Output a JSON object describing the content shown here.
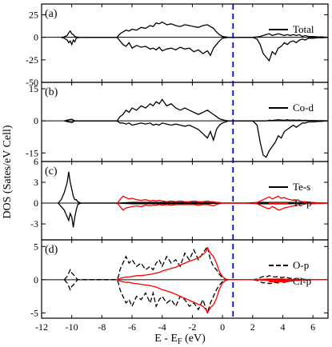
{
  "figure": {
    "ylabel": "DOS (Sates/eV Cell)",
    "xlabel_main": "E - E",
    "xlabel_sub": "F",
    "xlabel_unit": " (eV)"
  },
  "colors": {
    "black": "#000000",
    "red": "#ff0000",
    "fermi_line": "#0000ff"
  },
  "chart_data": [
    {
      "type": "line",
      "panel_label": "(a)",
      "xlim": [
        -12,
        7
      ],
      "ylim": [
        -50,
        37
      ],
      "yticks": [
        25,
        0,
        -25,
        -50
      ],
      "fermi_level_x": 0.7,
      "series": [
        {
          "name": "Total",
          "color": "#000000",
          "x": [
            -10.7,
            -10.5,
            -10.3,
            -10.2,
            -10.1,
            -10,
            -9.9,
            -9.8,
            -9.7,
            -9.5,
            -7,
            -6.9,
            -6.8,
            -6.6,
            -6.4,
            -6.2,
            -6,
            -5.7,
            -5.4,
            -5.1,
            -4.8,
            -4.6,
            -4.4,
            -4.2,
            -4,
            -3.7,
            -3.4,
            -3.1,
            -2.8,
            -2.5,
            -2.2,
            -1.9,
            -1.6,
            -1.3,
            -1,
            -0.8,
            -0.6,
            -0.4,
            -0.2,
            0,
            0.2,
            0.4,
            1.5,
            2,
            2.3,
            2.5,
            2.7,
            2.9,
            3.1,
            3.3,
            3.5,
            3.7,
            3.9,
            4.1,
            4.3,
            4.5,
            4.7,
            4.9,
            5.1,
            5.3,
            5.5,
            5.7,
            6,
            6.3,
            6.6,
            7
          ],
          "values_up": [
            0,
            0.5,
            2,
            5,
            7,
            4,
            3,
            1,
            0.5,
            0,
            0,
            2,
            4,
            6,
            8,
            7,
            9,
            8,
            11,
            10,
            13,
            12,
            16,
            15,
            17,
            14,
            15,
            13,
            12,
            14,
            13,
            12,
            11,
            13,
            14,
            12,
            10,
            6,
            3,
            1,
            0.5,
            0,
            0,
            0,
            0.5,
            1,
            2,
            3,
            4,
            2,
            3,
            4,
            3,
            2,
            3,
            2,
            3,
            2,
            3,
            1,
            2,
            1,
            1,
            0.5,
            0.5,
            0
          ],
          "values_down": [
            0,
            -1,
            -3,
            -6,
            -4,
            -8,
            -3,
            -5,
            -1,
            0,
            0,
            -2,
            -4,
            -8,
            -10,
            -6,
            -12,
            -9,
            -11,
            -10,
            -13,
            -12,
            -14,
            -11,
            -15,
            -13,
            -12,
            -14,
            -11,
            -13,
            -12,
            -16,
            -14,
            -18,
            -15,
            -20,
            -12,
            -8,
            -4,
            -1,
            -0.5,
            0,
            0,
            0,
            -2,
            -8,
            -18,
            -22,
            -26,
            -16,
            -19,
            -12,
            -10,
            -6,
            -8,
            -5,
            -4,
            -6,
            -3,
            -2,
            -3,
            -1,
            -1,
            -0.5,
            -0.5,
            0
          ]
        }
      ]
    },
    {
      "type": "line",
      "panel_label": "(b)",
      "xlim": [
        -12,
        7
      ],
      "ylim": [
        -19,
        18
      ],
      "yticks": [
        15,
        0,
        -15
      ],
      "fermi_level_x": 0.7,
      "series": [
        {
          "name": "Co-d",
          "color": "#000000",
          "x": [
            -10.5,
            -10.2,
            -10,
            -9.8,
            -7,
            -6.9,
            -6.8,
            -6.6,
            -6.4,
            -6.2,
            -6,
            -5.7,
            -5.4,
            -5.1,
            -4.8,
            -4.6,
            -4.4,
            -4.2,
            -4,
            -3.7,
            -3.4,
            -3.1,
            -2.8,
            -2.5,
            -2.2,
            -1.9,
            -1.6,
            -1.3,
            -1,
            -0.8,
            -0.6,
            -0.4,
            -0.2,
            0,
            0.2,
            0.4,
            1.5,
            2,
            2.3,
            2.5,
            2.7,
            2.9,
            3.1,
            3.3,
            3.5,
            3.7,
            3.9,
            4.1,
            4.3,
            4.5,
            4.7,
            4.9,
            5.1,
            5.3,
            5.5,
            5.7,
            6,
            6.3,
            6.6,
            7
          ],
          "values_up": [
            0,
            0.5,
            0.8,
            0,
            0,
            1,
            2,
            3,
            5,
            4,
            6,
            5,
            7,
            6,
            8,
            7,
            9,
            8,
            10,
            7,
            8,
            6,
            5,
            6,
            5,
            4,
            3,
            4,
            5,
            4,
            3,
            2,
            1,
            0.5,
            0.2,
            0,
            0,
            0,
            0,
            0,
            0,
            0,
            0.3,
            0.2,
            0.4,
            0.5,
            0.4,
            0.3,
            0.5,
            0.3,
            0.4,
            0.3,
            0.4,
            0.2,
            0.3,
            0.2,
            0.2,
            0.1,
            0.1,
            0
          ],
          "values_down": [
            0,
            -0.5,
            -0.8,
            0,
            0,
            -0.5,
            -1,
            -1,
            -1.5,
            -1,
            -2,
            -1.5,
            -1,
            -1.5,
            -1,
            -2,
            -1.5,
            -2,
            -1,
            -1.5,
            -2,
            -1.5,
            -2,
            -2.5,
            -2,
            -3,
            -4,
            -6,
            -8,
            -5,
            -9,
            -4,
            -2,
            -1,
            -0.5,
            0,
            0,
            0,
            -2,
            -10,
            -16,
            -17,
            -14,
            -12,
            -10,
            -7,
            -8,
            -5,
            -4,
            -3,
            -2,
            -3,
            -2,
            -1,
            -1,
            -0.5,
            -0.5,
            -0.3,
            -0.2,
            0
          ]
        }
      ]
    },
    {
      "type": "line",
      "panel_label": "(c)",
      "xlim": [
        -12,
        7
      ],
      "ylim": [
        -5.3,
        6
      ],
      "yticks": [
        6,
        3,
        0,
        -3
      ],
      "fermi_level_x": 0.7,
      "series": [
        {
          "name": "Te-s",
          "color": "#000000",
          "x": [
            -10.9,
            -10.7,
            -10.5,
            -10.3,
            -10.2,
            -10.1,
            -10,
            -9.9,
            -9.8,
            -9.7,
            -9.6,
            -9.4,
            -7,
            -6,
            -5,
            -4,
            -3,
            -2,
            -1,
            0,
            1.5,
            2.5,
            3.5,
            4.5,
            5.5,
            6.5,
            7
          ],
          "values_up": [
            0,
            0.5,
            1.5,
            3,
            4.5,
            3,
            2,
            1,
            0.5,
            0.5,
            0.2,
            0,
            0,
            0.1,
            0.1,
            0.1,
            0.1,
            0.1,
            0.1,
            0,
            0,
            0.1,
            0.1,
            0.1,
            0,
            0,
            0
          ],
          "values_down": [
            0,
            -0.5,
            -1,
            -2,
            -2.5,
            -1.5,
            -2,
            -3.5,
            -2,
            -1,
            -0.2,
            0,
            0,
            -0.1,
            -0.1,
            -0.1,
            -0.1,
            -0.1,
            -0.1,
            0,
            0,
            -0.1,
            -0.1,
            -0.1,
            0,
            0,
            0
          ]
        },
        {
          "name": "Te-p",
          "color": "#ff0000",
          "x": [
            -7,
            -6.9,
            -6.8,
            -6.6,
            -6.4,
            -6.2,
            -6,
            -5.7,
            -5.4,
            -5.1,
            -4.8,
            -4.6,
            -4.4,
            -4.2,
            -4,
            -3.7,
            -3.4,
            -3.1,
            -2.8,
            -2.5,
            -2.2,
            -1.9,
            -1.6,
            -1.3,
            -1,
            -0.8,
            -0.6,
            -0.4,
            -0.2,
            0,
            0.2,
            0.4,
            1.5,
            2,
            2.3,
            2.5,
            2.7,
            2.9,
            3.1,
            3.3,
            3.5,
            3.7,
            3.9,
            4.1,
            4.3,
            4.5,
            4.7,
            4.9,
            5.1,
            5.3,
            5.5,
            5.7,
            6,
            6.3,
            6.6,
            7
          ],
          "values_up": [
            0,
            0.2,
            0.5,
            1,
            0.8,
            0.6,
            0.7,
            0.5,
            0.4,
            0.5,
            0.3,
            0.4,
            0.3,
            0.4,
            0.3,
            0.2,
            0.3,
            0.2,
            0.3,
            0.2,
            0.2,
            0.3,
            0.2,
            0.2,
            0.3,
            0.2,
            0.2,
            0.1,
            0.1,
            0,
            0,
            0,
            0,
            0,
            0.1,
            0.3,
            0.5,
            0.7,
            0.9,
            0.6,
            0.8,
            1,
            0.7,
            0.8,
            0.6,
            0.5,
            0.4,
            0.3,
            0.3,
            0.2,
            0.2,
            0.1,
            0.1,
            0.05,
            0.05,
            0
          ],
          "values_down": [
            0,
            -0.2,
            -0.5,
            -1,
            -0.7,
            -0.6,
            -0.5,
            -0.4,
            -0.5,
            -0.3,
            -0.4,
            -0.3,
            -0.3,
            -0.2,
            -0.3,
            -0.2,
            -0.3,
            -0.2,
            -0.2,
            -0.2,
            -0.2,
            -0.2,
            -0.3,
            -0.2,
            -0.2,
            -0.3,
            -0.4,
            -0.2,
            -0.1,
            0,
            0,
            0,
            0,
            0,
            -0.1,
            -0.3,
            -0.5,
            -0.7,
            -0.8,
            -0.5,
            -0.7,
            -1,
            -0.9,
            -0.7,
            -0.6,
            -0.5,
            -0.4,
            -0.3,
            -0.2,
            -0.2,
            -0.1,
            -0.1,
            -0.1,
            -0.05,
            -0.05,
            0
          ]
        }
      ]
    },
    {
      "type": "line",
      "panel_label": "(d)",
      "xlim": [
        -12,
        7
      ],
      "ylim": [
        -5.8,
        6
      ],
      "yticks": [
        5,
        0,
        -5
      ],
      "fermi_level_x": 0.7,
      "series": [
        {
          "name": "O-p",
          "color": "#000000",
          "dashed": true,
          "x": [
            -10.5,
            -10.3,
            -10.2,
            -10.1,
            -10,
            -9.9,
            -9.8,
            -9.6,
            -7,
            -6.9,
            -6.8,
            -6.6,
            -6.4,
            -6.2,
            -6,
            -5.7,
            -5.4,
            -5.1,
            -4.8,
            -4.6,
            -4.4,
            -4.2,
            -4,
            -3.7,
            -3.4,
            -3.1,
            -2.8,
            -2.5,
            -2.2,
            -1.9,
            -1.6,
            -1.3,
            -1,
            -0.8,
            -0.6,
            -0.4,
            -0.2,
            0,
            0.2,
            0.4,
            1.5,
            2,
            2.3,
            2.5,
            2.7,
            2.9,
            3.1,
            3.3,
            3.5,
            3.7,
            3.9,
            4.1,
            4.3,
            4.5,
            4.7,
            4.9,
            5.1,
            5.3,
            5.5,
            5.7,
            6,
            6.3,
            6.6,
            7
          ],
          "values_up": [
            0,
            0.5,
            1,
            1.5,
            1,
            0.8,
            0.5,
            0,
            0,
            0.5,
            1.5,
            2.5,
            3.5,
            2.5,
            3,
            2,
            2.5,
            1.5,
            2,
            1.5,
            2.5,
            3,
            2,
            3.5,
            2.5,
            3,
            2,
            4,
            3,
            4.5,
            3,
            4,
            5,
            3,
            2,
            1.5,
            0.8,
            0.3,
            0.1,
            0,
            0,
            0,
            0.1,
            0.3,
            0.5,
            0.4,
            0.6,
            0.5,
            0.4,
            0.5,
            0.3,
            0.4,
            0.3,
            0.2,
            0.2,
            0.1,
            0.1,
            0.1,
            0.05,
            0.05,
            0,
            0,
            0,
            0
          ],
          "values_down": [
            0,
            -0.5,
            -1,
            -1.5,
            -1,
            -0.8,
            -0.5,
            0,
            0,
            -0.5,
            -1.5,
            -2.5,
            -3.5,
            -3,
            -4,
            -2.5,
            -3,
            -2,
            -3.5,
            -2,
            -4,
            -3,
            -2.5,
            -3.5,
            -3,
            -4,
            -2.5,
            -3,
            -4,
            -3.5,
            -4.5,
            -3,
            -5,
            -3.5,
            -2.5,
            -1.5,
            -0.8,
            -0.3,
            -0.1,
            0,
            0,
            0,
            -0.1,
            -0.3,
            -0.5,
            -0.4,
            -0.6,
            -0.5,
            -0.4,
            -0.5,
            -0.3,
            -0.4,
            -0.3,
            -0.2,
            -0.2,
            -0.1,
            -0.1,
            -0.1,
            -0.05,
            -0.05,
            0,
            0,
            0,
            0
          ]
        },
        {
          "name": "Cl-p",
          "color": "#ff0000",
          "x": [
            -7,
            -6.9,
            -6.8,
            -6.6,
            -6.4,
            -6.2,
            -6,
            -5.7,
            -5.4,
            -5.1,
            -4.8,
            -4.6,
            -4.4,
            -4.2,
            -4,
            -3.7,
            -3.4,
            -3.1,
            -2.8,
            -2.5,
            -2.2,
            -1.9,
            -1.6,
            -1.3,
            -1.1,
            -1,
            -0.8,
            -0.6,
            -0.4,
            -0.2,
            0,
            0.2,
            0.4,
            1.5,
            2,
            2.5,
            3,
            3.5,
            4,
            4.5,
            5,
            5.5,
            6,
            7
          ],
          "values_up": [
            0,
            0.1,
            0.2,
            0.3,
            0.4,
            0.4,
            0.5,
            0.6,
            0.6,
            0.7,
            0.8,
            0.9,
            1,
            1.1,
            1.3,
            1.5,
            1.7,
            1.9,
            2.2,
            2.5,
            2.8,
            3,
            3.3,
            3.8,
            4.2,
            4.8,
            4,
            3.5,
            2.5,
            1.2,
            0.5,
            0.1,
            0,
            0,
            0,
            0.05,
            0.1,
            0.1,
            0.1,
            0.05,
            0.05,
            0,
            0,
            0
          ],
          "values_down": [
            0,
            -0.1,
            -0.2,
            -0.3,
            -0.4,
            -0.4,
            -0.5,
            -0.6,
            -0.7,
            -0.8,
            -0.9,
            -1,
            -1.1,
            -1.3,
            -1.5,
            -1.7,
            -1.9,
            -2.2,
            -2.5,
            -2.8,
            -3.1,
            -3.4,
            -3.7,
            -4,
            -4.5,
            -5,
            -4.2,
            -3.8,
            -2.8,
            -1.4,
            -0.5,
            -0.1,
            0,
            0,
            0,
            -0.05,
            -0.1,
            -0.1,
            -0.1,
            -0.05,
            -0.05,
            0,
            0,
            0
          ]
        }
      ]
    }
  ],
  "x_axis": {
    "ticks": [
      -12,
      -10,
      -8,
      -6,
      -4,
      -2,
      0,
      2,
      4,
      6
    ]
  }
}
